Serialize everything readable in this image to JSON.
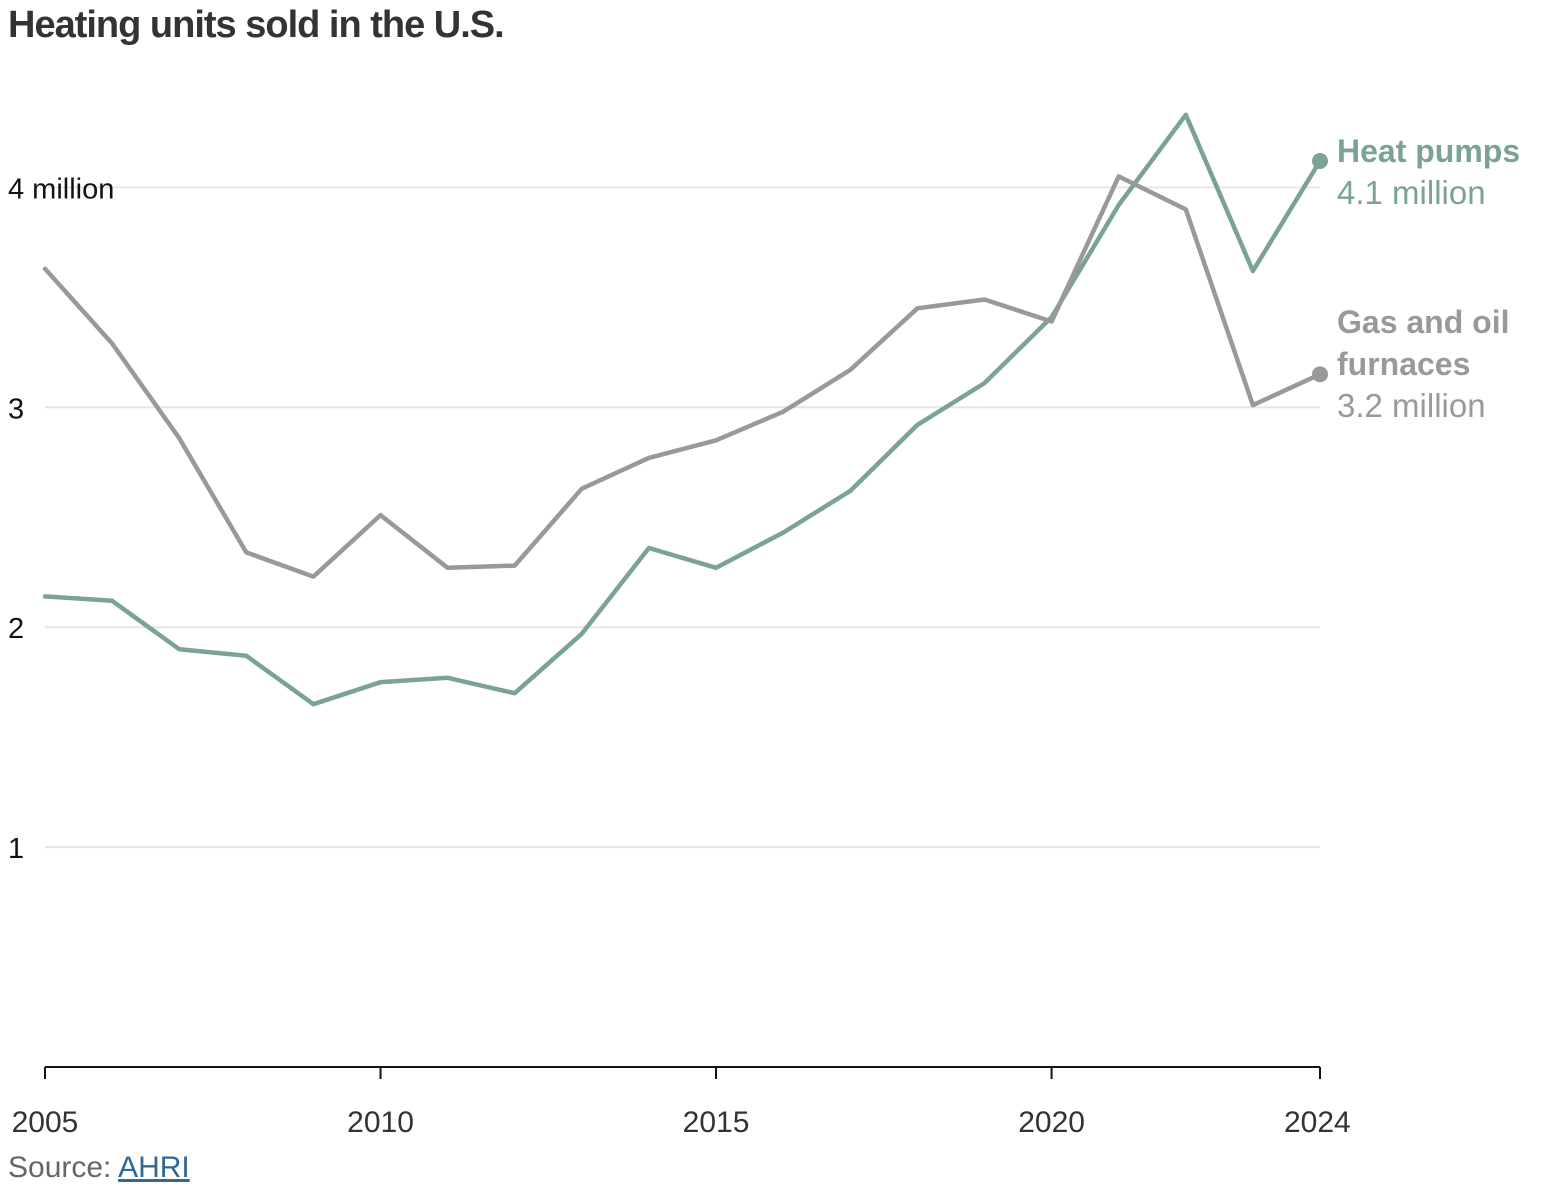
{
  "chart_data": {
    "type": "line",
    "title": "Heating units sold in the U.S.",
    "x": [
      2005,
      2006,
      2007,
      2008,
      2009,
      2010,
      2011,
      2012,
      2013,
      2014,
      2015,
      2016,
      2017,
      2018,
      2019,
      2020,
      2021,
      2022,
      2023,
      2024
    ],
    "series": [
      {
        "name": "Heat pumps",
        "label_value": "4.1 million",
        "color": "#7ba394",
        "values": [
          2.14,
          2.12,
          1.9,
          1.87,
          1.65,
          1.75,
          1.77,
          1.7,
          1.97,
          2.36,
          2.27,
          2.43,
          2.62,
          2.92,
          3.11,
          3.41,
          3.92,
          4.33,
          3.62,
          4.12
        ]
      },
      {
        "name": "Gas and oil furnaces",
        "label_value": "3.2 million",
        "color": "#999999",
        "values": [
          3.63,
          3.29,
          2.86,
          2.34,
          2.23,
          2.51,
          2.27,
          2.28,
          2.63,
          2.77,
          2.85,
          2.98,
          3.17,
          3.45,
          3.49,
          3.39,
          4.05,
          3.9,
          3.01,
          3.15
        ]
      }
    ],
    "y_ticks": [
      {
        "value": 4,
        "label": "4 million"
      },
      {
        "value": 3,
        "label": "3"
      },
      {
        "value": 2,
        "label": "2"
      },
      {
        "value": 1,
        "label": "1"
      }
    ],
    "x_ticks": [
      {
        "value": 2005,
        "label": "2005"
      },
      {
        "value": 2010,
        "label": "2010"
      },
      {
        "value": 2015,
        "label": "2015"
      },
      {
        "value": 2020,
        "label": "2020"
      },
      {
        "value": 2024,
        "label": "2024"
      }
    ],
    "xlim": [
      2005,
      2024
    ],
    "ylim": [
      0,
      4.4
    ],
    "grid": true,
    "legend": "inline labels at right end of lines"
  },
  "source": {
    "prefix": "Source: ",
    "link_text": "AHRI"
  }
}
